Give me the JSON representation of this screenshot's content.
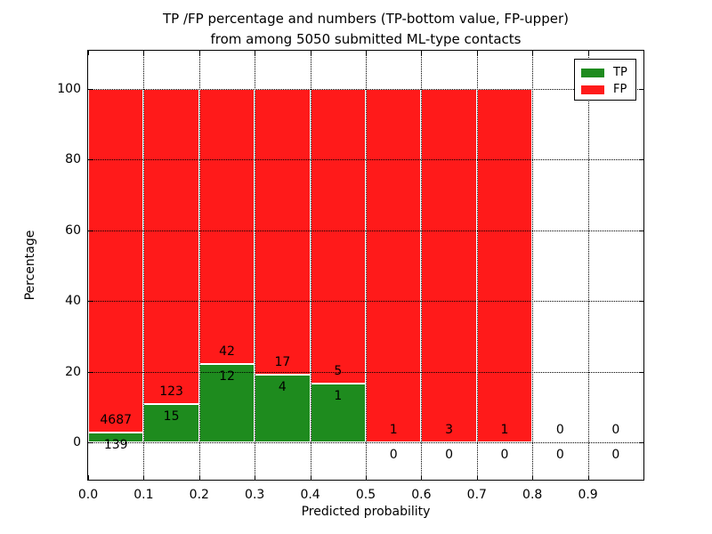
{
  "chart_data": {
    "type": "bar",
    "stacked": true,
    "normalized": "each bin scaled to 100%",
    "title": "TP /FP percentage and numbers (TP-bottom value, FP-upper)\nfrom among 5050 submitted ML-type contacts",
    "title_lines": [
      "TP /FP percentage and numbers (TP-bottom value, FP-upper)",
      "from among 5050 submitted ML-type contacts"
    ],
    "xlabel": "Predicted probability",
    "ylabel": "Percentage",
    "xlim": [
      0.0,
      1.0
    ],
    "ylim": [
      -10,
      111
    ],
    "x_tick_labels": [
      "0.0",
      "0.1",
      "0.2",
      "0.3",
      "0.4",
      "0.5",
      "0.6",
      "0.7",
      "0.8",
      "0.9"
    ],
    "y_ticks": [
      0,
      20,
      40,
      60,
      80,
      100
    ],
    "grid": {
      "style": "dotted",
      "color": "#000000",
      "drawn_over_bars": true
    },
    "legend": {
      "position": "upper-right",
      "entries": [
        {
          "label": "TP",
          "color": "#1e8b1e"
        },
        {
          "label": "FP",
          "color": "#ff1a1a"
        }
      ]
    },
    "bins": [
      {
        "x_range": [
          0.0,
          0.1
        ],
        "tp": 139,
        "fp": 4687
      },
      {
        "x_range": [
          0.1,
          0.2
        ],
        "tp": 15,
        "fp": 123
      },
      {
        "x_range": [
          0.2,
          0.3
        ],
        "tp": 12,
        "fp": 42
      },
      {
        "x_range": [
          0.3,
          0.4
        ],
        "tp": 4,
        "fp": 17
      },
      {
        "x_range": [
          0.4,
          0.5
        ],
        "tp": 1,
        "fp": 5
      },
      {
        "x_range": [
          0.5,
          0.6
        ],
        "tp": 0,
        "fp": 1
      },
      {
        "x_range": [
          0.6,
          0.7
        ],
        "tp": 0,
        "fp": 3
      },
      {
        "x_range": [
          0.7,
          0.8
        ],
        "tp": 0,
        "fp": 1
      },
      {
        "x_range": [
          0.8,
          0.9
        ],
        "tp": 0,
        "fp": 0
      },
      {
        "x_range": [
          0.9,
          1.0
        ],
        "tp": 0,
        "fp": 0
      }
    ],
    "colors": {
      "tp": "#1e8b1e",
      "fp": "#ff1a1a",
      "bar_edge": "#ffffff",
      "spine": "#000000",
      "text": "#000000",
      "background": "#ffffff"
    }
  }
}
